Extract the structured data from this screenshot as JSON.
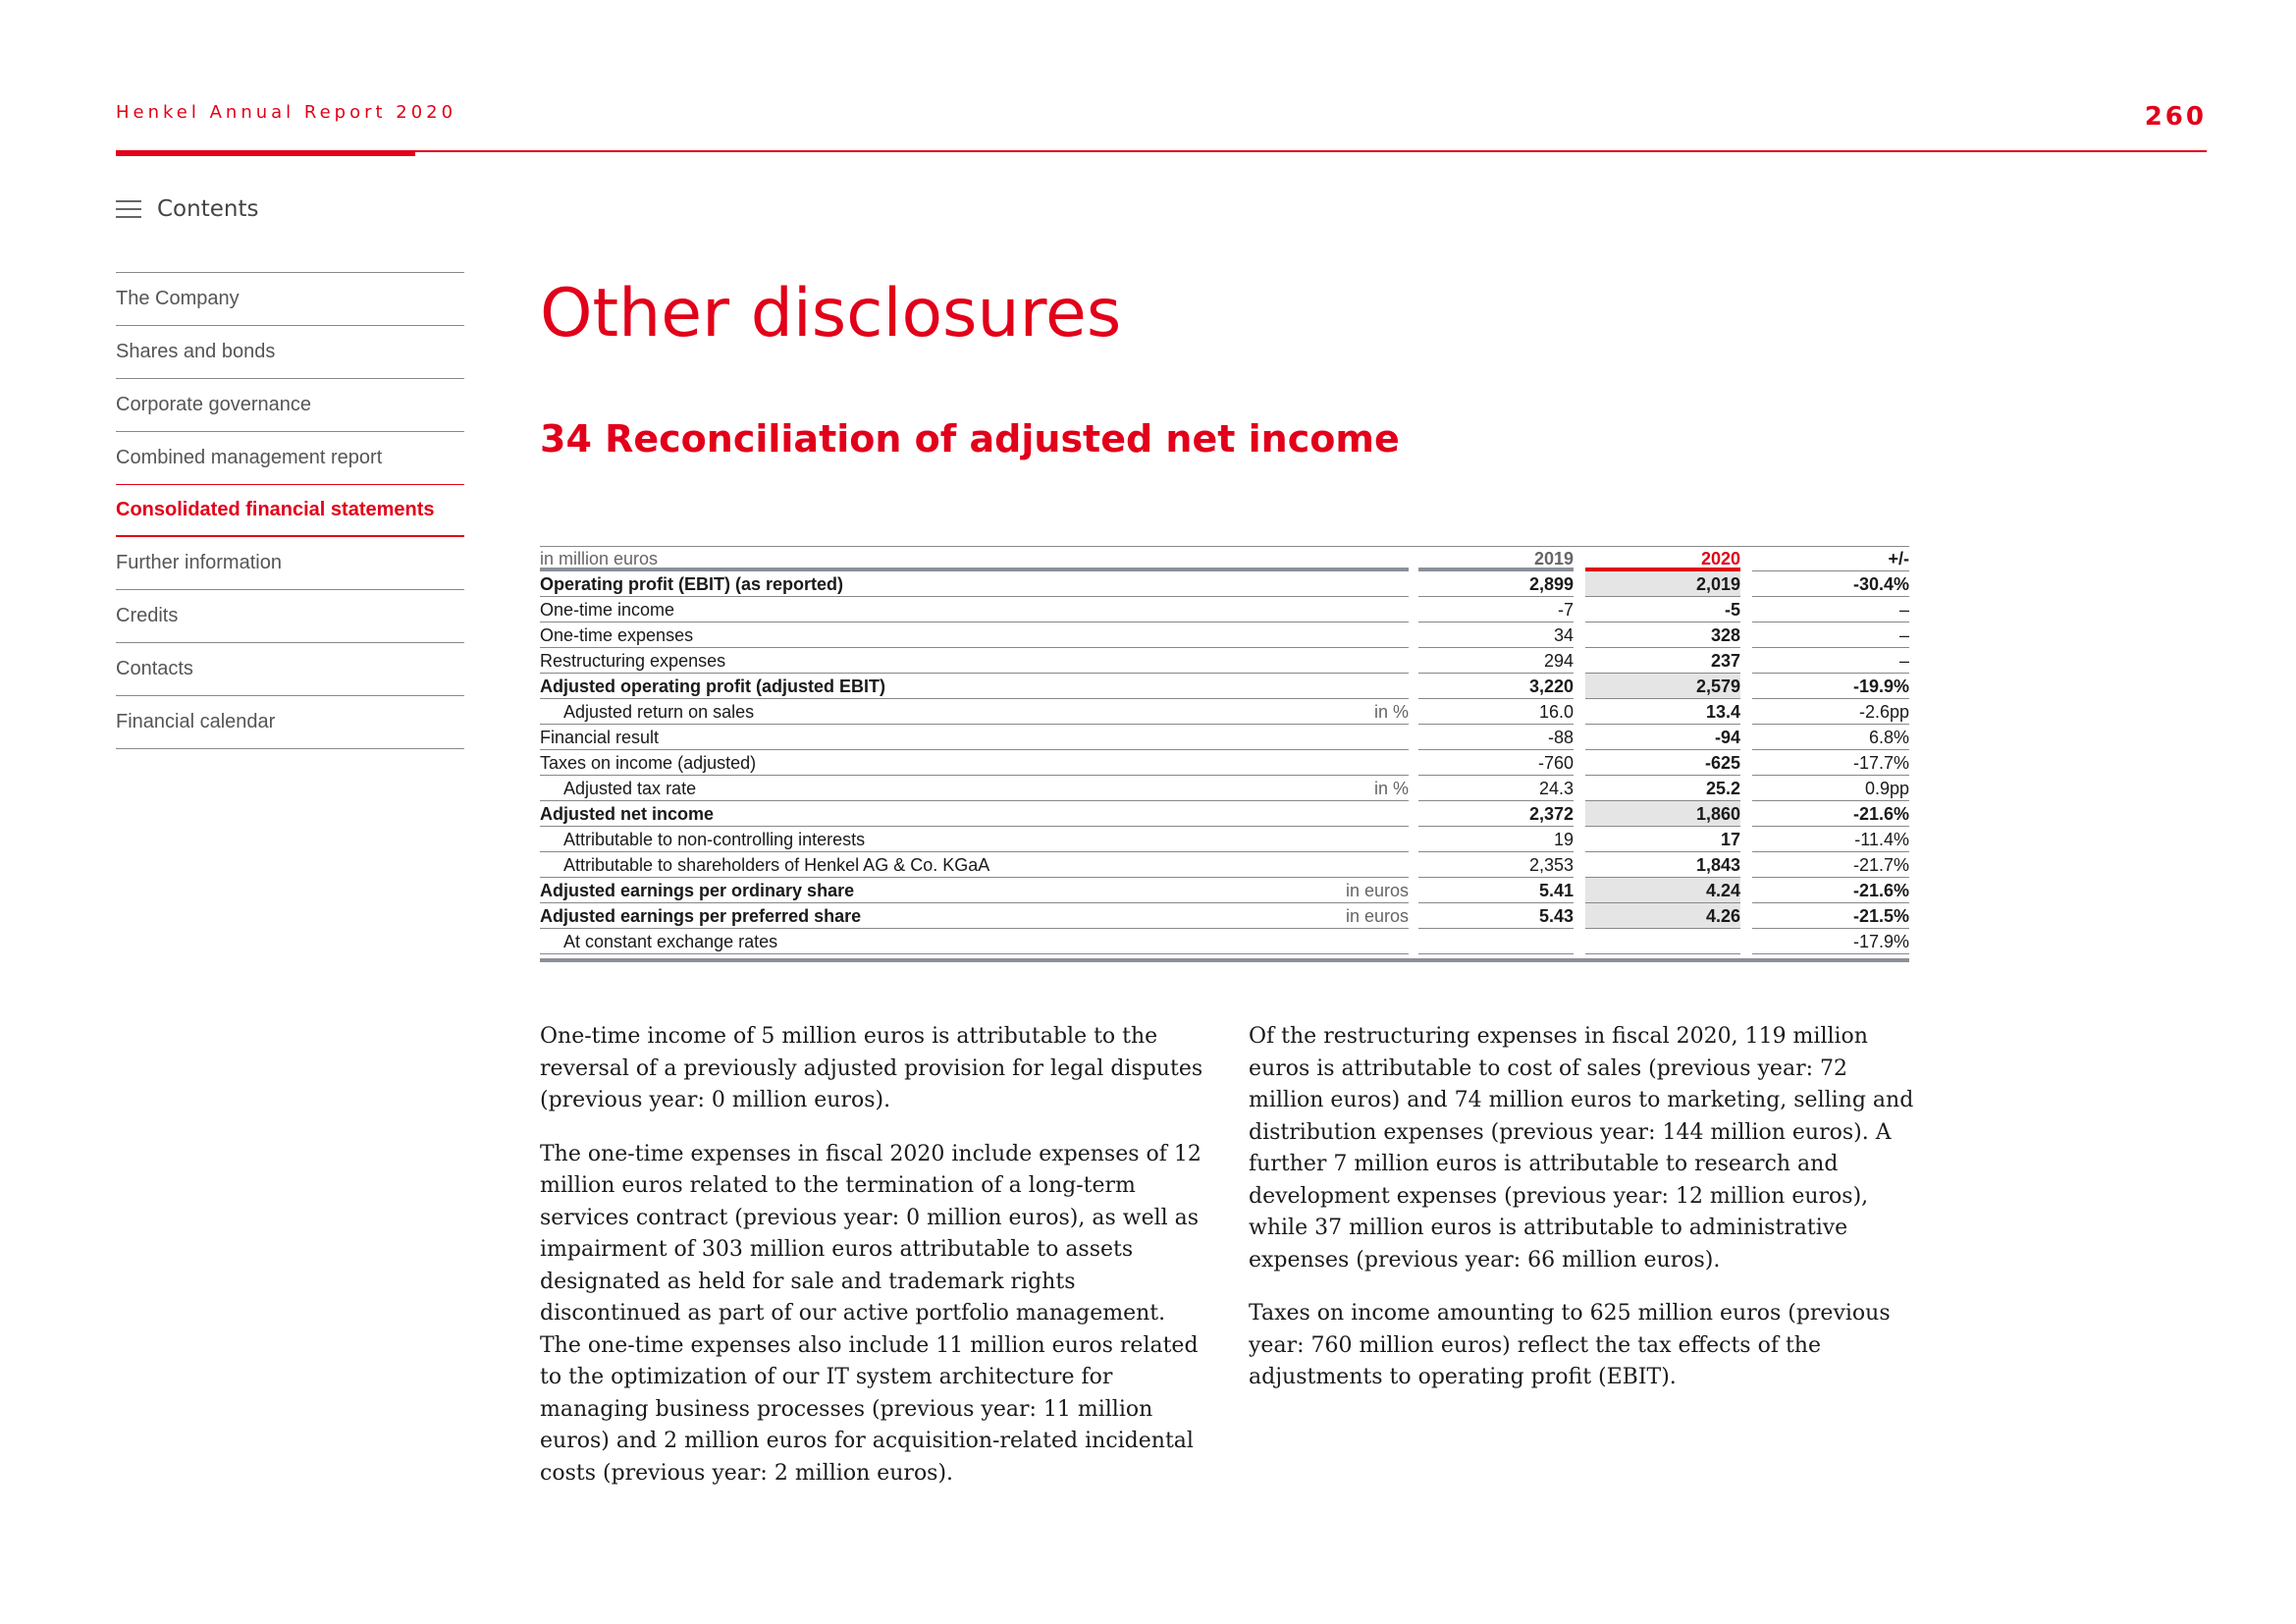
{
  "header": {
    "report_title": "Henkel Annual Report 2020",
    "page_number": "260"
  },
  "nav": {
    "contents_label": "Contents",
    "items": [
      {
        "label": "The Company",
        "active": false
      },
      {
        "label": "Shares and bonds",
        "active": false
      },
      {
        "label": "Corporate governance",
        "active": false
      },
      {
        "label": "Combined management report",
        "active": false
      },
      {
        "label": "Consolidated financial statements",
        "active": true
      },
      {
        "label": "Further information",
        "active": false
      },
      {
        "label": "Credits",
        "active": false
      },
      {
        "label": "Contacts",
        "active": false
      },
      {
        "label": "Financial calendar",
        "active": false
      }
    ]
  },
  "main": {
    "title": "Other disclosures",
    "section_title": "34 Reconciliation of adjusted net income"
  },
  "table": {
    "unit_label": "in million euros",
    "columns": [
      "2019",
      "2020",
      "+/-"
    ],
    "rows": [
      {
        "label": "Operating profit (EBIT) (as reported)",
        "unit": "",
        "v2019": "2,899",
        "v2020": "2,019",
        "change": "-30.4%",
        "bold": true,
        "indent": false,
        "shade": true
      },
      {
        "label": "One-time income",
        "unit": "",
        "v2019": "-7",
        "v2020": "-5",
        "change": "–",
        "bold": false,
        "indent": false,
        "shade": false
      },
      {
        "label": "One-time expenses",
        "unit": "",
        "v2019": "34",
        "v2020": "328",
        "change": "–",
        "bold": false,
        "indent": false,
        "shade": false
      },
      {
        "label": "Restructuring expenses",
        "unit": "",
        "v2019": "294",
        "v2020": "237",
        "change": "–",
        "bold": false,
        "indent": false,
        "shade": false
      },
      {
        "label": "Adjusted operating profit (adjusted EBIT)",
        "unit": "",
        "v2019": "3,220",
        "v2020": "2,579",
        "change": "-19.9%",
        "bold": true,
        "indent": false,
        "shade": true
      },
      {
        "label": "Adjusted return on sales",
        "unit": "in %",
        "v2019": "16.0",
        "v2020": "13.4",
        "change": "-2.6pp",
        "bold": false,
        "indent": true,
        "shade": false
      },
      {
        "label": "Financial result",
        "unit": "",
        "v2019": "-88",
        "v2020": "-94",
        "change": "6.8%",
        "bold": false,
        "indent": false,
        "shade": false
      },
      {
        "label": "Taxes on income (adjusted)",
        "unit": "",
        "v2019": "-760",
        "v2020": "-625",
        "change": "-17.7%",
        "bold": false,
        "indent": false,
        "shade": false
      },
      {
        "label": "Adjusted tax rate",
        "unit": "in %",
        "v2019": "24.3",
        "v2020": "25.2",
        "change": "0.9pp",
        "bold": false,
        "indent": true,
        "shade": false
      },
      {
        "label": "Adjusted net income",
        "unit": "",
        "v2019": "2,372",
        "v2020": "1,860",
        "change": "-21.6%",
        "bold": true,
        "indent": false,
        "shade": true
      },
      {
        "label": "Attributable to non-controlling interests",
        "unit": "",
        "v2019": "19",
        "v2020": "17",
        "change": "-11.4%",
        "bold": false,
        "indent": true,
        "shade": false
      },
      {
        "label": "Attributable to shareholders of Henkel AG & Co. KGaA",
        "unit": "",
        "v2019": "2,353",
        "v2020": "1,843",
        "change": "-21.7%",
        "bold": false,
        "indent": true,
        "shade": false
      },
      {
        "label": "Adjusted earnings per ordinary share",
        "unit": "in euros",
        "v2019": "5.41",
        "v2020": "4.24",
        "change": "-21.6%",
        "bold": true,
        "indent": false,
        "shade": true
      },
      {
        "label": "Adjusted earnings per preferred share",
        "unit": "in euros",
        "v2019": "5.43",
        "v2020": "4.26",
        "change": "-21.5%",
        "bold": true,
        "indent": false,
        "shade": true
      },
      {
        "label": "At constant exchange rates",
        "unit": "",
        "v2019": "",
        "v2020": "",
        "change": "-17.9%",
        "bold": false,
        "indent": true,
        "shade": false
      }
    ]
  },
  "body_text": {
    "left": [
      "One-time income of 5 million euros is attributable to the reversal of a previously adjusted provision for legal disputes (previous year: 0 million euros).",
      "The one-time expenses in fiscal 2020 include expenses of 12 million euros related to the termination of a long-term services contract (previous year: 0 million euros), as well as impairment of 303 million euros attributable to assets designated as held for sale and trademark rights discontinued as part of our active portfolio management. The one-time expenses also include 11 million euros related to the optimization of our IT system architecture for managing business processes (previous year: 11 million euros) and 2 million euros for acquisition-related incidental costs (previous year: 2 million euros)."
    ],
    "right": [
      "Of the restructuring expenses in fiscal 2020, 119 million euros is attributable to cost of sales (previous year: 72 million euros) and 74 million euros to marketing, selling and distribution expenses (previous year: 144 million euros). A further 7 million euros is attributable to research and development expenses (previous year: 12 million euros), while 37 million euros is attributable to administrative expenses (previous year: 66 million euros).",
      "Taxes on income amounting to 625 million euros (previous year: 760 million euros) reflect the tax effects of the adjustments to operating profit (EBIT)."
    ]
  },
  "colors": {
    "accent": "#e2001a",
    "rule": "#888888",
    "shade": "#e5e5e5"
  }
}
